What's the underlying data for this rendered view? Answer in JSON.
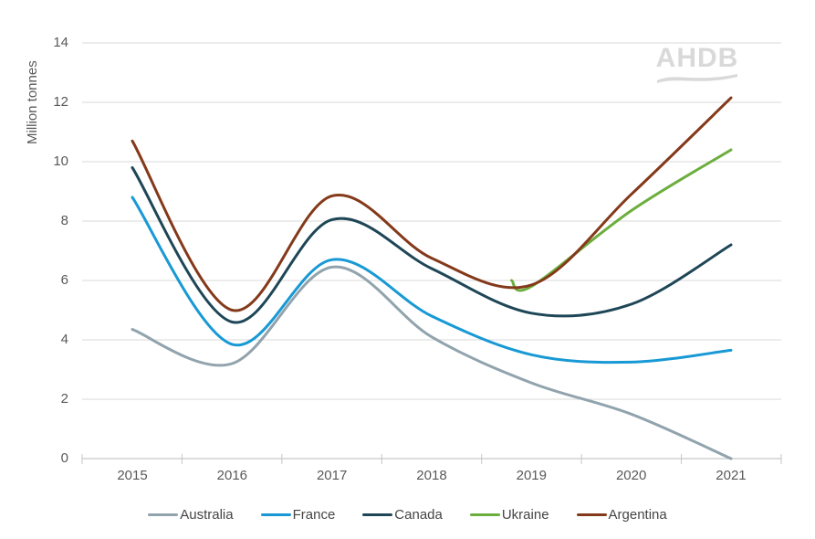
{
  "watermark": {
    "text": "AHDB"
  },
  "chart_data": {
    "type": "line",
    "title": "",
    "xlabel": "",
    "ylabel": "Million tonnes",
    "ylim": [
      0,
      14
    ],
    "ytick_step": 2,
    "yticks": [
      0,
      2,
      4,
      6,
      8,
      10,
      12,
      14
    ],
    "xticks": [
      "2015",
      "2016",
      "2017",
      "2018",
      "2019",
      "2020",
      "2021"
    ],
    "categories": [
      2015,
      2016,
      2017,
      2018,
      2019,
      2020,
      2021
    ],
    "grid": "horizontal",
    "smoothed_lines": true,
    "legend_position": "bottom",
    "series": [
      {
        "name": "Australia",
        "color": "#91A3AD",
        "x": [
          2015,
          2016,
          2017,
          2018,
          2019,
          2020,
          2021
        ],
        "values": [
          4.35,
          3.2,
          6.45,
          4.1,
          2.55,
          1.5,
          0.0
        ]
      },
      {
        "name": "France",
        "color": "#1899D5",
        "x": [
          2015,
          2016,
          2017,
          2018,
          2019,
          2020,
          2021
        ],
        "values": [
          8.8,
          3.85,
          6.7,
          4.8,
          3.5,
          3.25,
          3.65
        ]
      },
      {
        "name": "Canada",
        "color": "#1E4657",
        "x": [
          2015,
          2016,
          2017,
          2018,
          2019,
          2020,
          2021
        ],
        "values": [
          9.8,
          4.6,
          8.05,
          6.4,
          4.9,
          5.2,
          7.2
        ]
      },
      {
        "name": "Ukraine",
        "color": "#6CAE3E",
        "x": [
          2018.8,
          2019,
          2020,
          2021
        ],
        "values": [
          6.0,
          5.8,
          8.35,
          10.4
        ]
      },
      {
        "name": "Argentina",
        "color": "#84391A",
        "x": [
          2015,
          2016,
          2017,
          2018,
          2019,
          2020,
          2021
        ],
        "values": [
          10.7,
          5.0,
          8.85,
          6.75,
          5.85,
          8.9,
          12.15
        ]
      }
    ],
    "colors": {
      "grid": "#D9D9D9",
      "axis": "#C6C6C6",
      "tick_label": "#595959",
      "legend_text": "#454545",
      "watermark": "#D9D9D9",
      "background": "#FFFFFF"
    }
  }
}
